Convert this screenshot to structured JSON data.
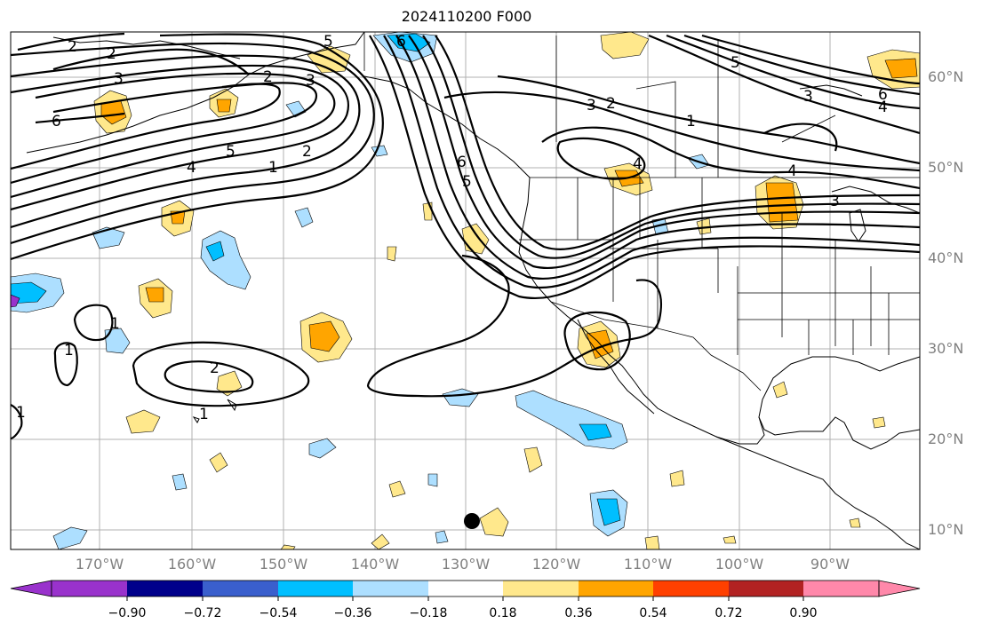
{
  "title": "2024110200 F000",
  "lat_labels": [
    {
      "text": "60°N"
    },
    {
      "text": "50°N"
    },
    {
      "text": "40°N"
    },
    {
      "text": "30°N"
    },
    {
      "text": "20°N"
    },
    {
      "text": "10°N"
    }
  ],
  "lon_labels": [
    {
      "text": "170°W"
    },
    {
      "text": "160°W"
    },
    {
      "text": "150°W"
    },
    {
      "text": "140°W"
    },
    {
      "text": "130°W"
    },
    {
      "text": "120°W"
    },
    {
      "text": "110°W"
    },
    {
      "text": "100°W"
    },
    {
      "text": "90°W"
    }
  ],
  "colorbar": {
    "ticks": [
      "−0.90",
      "−0.72",
      "−0.54",
      "−0.36",
      "−0.18",
      "0.18",
      "0.36",
      "0.54",
      "0.72",
      "0.90"
    ],
    "colors": [
      "#9932CC",
      "#00008B",
      "#3A5FCD",
      "#00BFFF",
      "#ADDFFF",
      "#FFFFFF",
      "#FFE88C",
      "#FFA500",
      "#FF4000",
      "#B22222",
      "#FF88AA"
    ]
  },
  "contour_labels": [
    "2",
    "2",
    "3",
    "6",
    "5",
    "2",
    "3",
    "4",
    "5",
    "1",
    "2",
    "6",
    "6",
    "5",
    "3",
    "2",
    "1",
    "4",
    "5",
    "3",
    "4",
    "6",
    "4",
    "3",
    "1",
    "1",
    "2",
    "1",
    "1"
  ],
  "marker": "black dot"
}
